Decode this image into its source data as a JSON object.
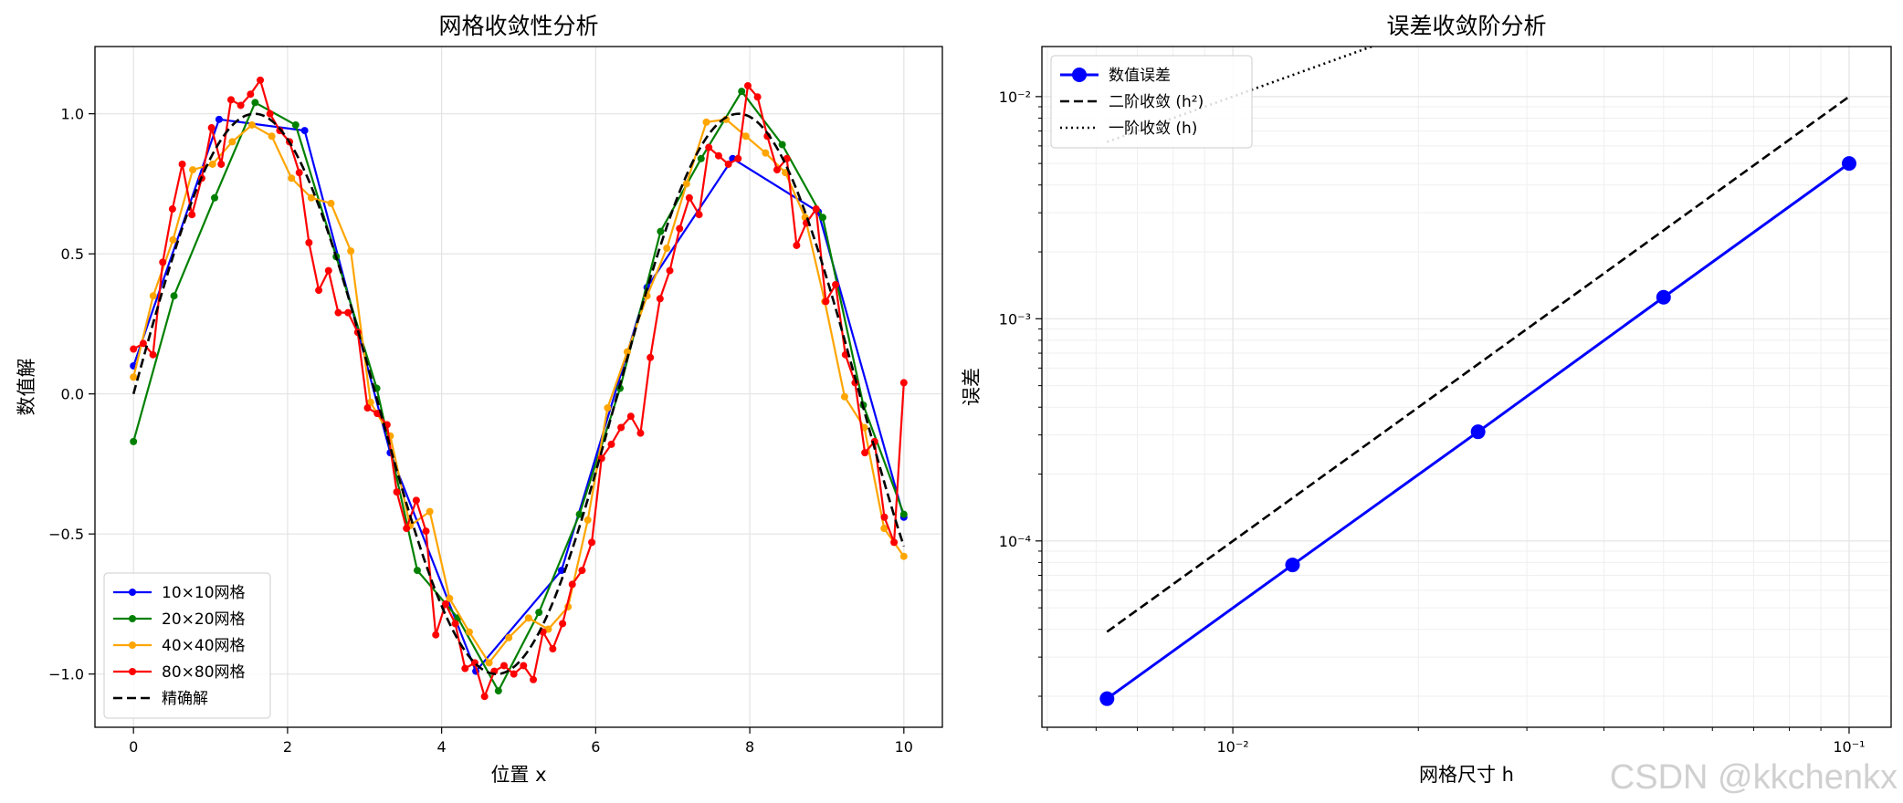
{
  "watermark": "CSDN @kkchenkx",
  "chart_data": [
    {
      "type": "line",
      "title": "网格收敛性分析",
      "xlabel": "位置 x",
      "ylabel": "数值解",
      "xlim": [
        -0.5,
        10.5
      ],
      "ylim": [
        -1.19,
        1.24
      ],
      "xticks": [
        0,
        2,
        4,
        6,
        8,
        10
      ],
      "xtick_labels": [
        "0",
        "2",
        "4",
        "6",
        "8",
        "10"
      ],
      "yticks": [
        -1.0,
        -0.5,
        0.0,
        0.5,
        1.0
      ],
      "ytick_labels": [
        "−1.0",
        "−0.5",
        "0.0",
        "0.5",
        "1.0"
      ],
      "grid": true,
      "legend_position": "lower-left",
      "series": [
        {
          "name": "10×10网格",
          "color": "#0000ff",
          "marker": "circle",
          "linestyle": "solid",
          "x": [
            0,
            1.111,
            2.222,
            3.333,
            4.444,
            5.556,
            6.667,
            7.778,
            8.889,
            10
          ],
          "y": [
            0.1,
            0.98,
            0.94,
            -0.21,
            -0.99,
            -0.63,
            0.38,
            0.84,
            0.65,
            -0.44
          ]
        },
        {
          "name": "20×20网格",
          "color": "#008000",
          "marker": "circle",
          "linestyle": "solid",
          "x": [
            0,
            0.526,
            1.053,
            1.579,
            2.105,
            2.632,
            3.158,
            3.684,
            4.211,
            4.737,
            5.263,
            5.789,
            6.316,
            6.842,
            7.368,
            7.895,
            8.421,
            8.947,
            9.474,
            10
          ],
          "y": [
            -0.17,
            0.35,
            0.7,
            1.04,
            0.96,
            0.49,
            0.02,
            -0.63,
            -0.8,
            -1.06,
            -0.78,
            -0.43,
            0.02,
            0.58,
            0.84,
            1.08,
            0.89,
            0.63,
            -0.04,
            -0.43
          ]
        },
        {
          "name": "40×40网格",
          "color": "#ffa500",
          "marker": "circle",
          "linestyle": "solid",
          "x": [
            0,
            0.256,
            0.513,
            0.769,
            1.026,
            1.282,
            1.538,
            1.795,
            2.051,
            2.308,
            2.564,
            2.821,
            3.077,
            3.333,
            3.59,
            3.846,
            4.103,
            4.359,
            4.615,
            4.872,
            5.128,
            5.385,
            5.641,
            5.897,
            6.154,
            6.41,
            6.667,
            6.923,
            7.179,
            7.436,
            7.692,
            7.949,
            8.205,
            8.462,
            8.718,
            8.974,
            9.231,
            9.487,
            9.744,
            10
          ],
          "y": [
            0.06,
            0.35,
            0.55,
            0.8,
            0.82,
            0.9,
            0.96,
            0.92,
            0.77,
            0.7,
            0.68,
            0.51,
            -0.03,
            -0.15,
            -0.47,
            -0.42,
            -0.73,
            -0.85,
            -0.96,
            -0.87,
            -0.8,
            -0.84,
            -0.76,
            -0.45,
            -0.05,
            0.15,
            0.35,
            0.52,
            0.75,
            0.97,
            0.98,
            0.92,
            0.86,
            0.79,
            0.63,
            0.33,
            -0.01,
            -0.12,
            -0.48,
            -0.58
          ]
        },
        {
          "name": "80×80网格",
          "color": "#ff0000",
          "marker": "circle",
          "linestyle": "solid",
          "x": [
            0,
            0.127,
            0.253,
            0.38,
            0.506,
            0.633,
            0.759,
            0.886,
            1.013,
            1.139,
            1.266,
            1.392,
            1.519,
            1.646,
            1.772,
            1.899,
            2.025,
            2.152,
            2.278,
            2.405,
            2.532,
            2.658,
            2.785,
            2.911,
            3.038,
            3.165,
            3.291,
            3.418,
            3.544,
            3.671,
            3.797,
            3.924,
            4.051,
            4.177,
            4.304,
            4.43,
            4.557,
            4.684,
            4.81,
            4.937,
            5.063,
            5.19,
            5.316,
            5.443,
            5.57,
            5.696,
            5.823,
            5.949,
            6.076,
            6.203,
            6.329,
            6.456,
            6.582,
            6.709,
            6.835,
            6.962,
            7.089,
            7.215,
            7.342,
            7.468,
            7.595,
            7.722,
            7.848,
            7.975,
            8.101,
            8.228,
            8.354,
            8.481,
            8.608,
            8.734,
            8.861,
            8.987,
            9.114,
            9.241,
            9.367,
            9.494,
            9.62,
            9.747,
            9.873,
            10
          ],
          "y": [
            0.16,
            0.18,
            0.14,
            0.47,
            0.66,
            0.82,
            0.64,
            0.77,
            0.95,
            0.82,
            1.05,
            1.03,
            1.07,
            1.12,
            1.0,
            0.94,
            0.9,
            0.79,
            0.54,
            0.37,
            0.44,
            0.29,
            0.29,
            0.22,
            -0.05,
            -0.07,
            -0.11,
            -0.35,
            -0.48,
            -0.38,
            -0.49,
            -0.86,
            -0.75,
            -0.82,
            -0.98,
            -0.96,
            -1.08,
            -0.99,
            -0.97,
            -1.0,
            -0.97,
            -1.02,
            -0.85,
            -0.91,
            -0.82,
            -0.68,
            -0.63,
            -0.53,
            -0.23,
            -0.18,
            -0.12,
            -0.08,
            -0.14,
            0.13,
            0.34,
            0.44,
            0.59,
            0.7,
            0.64,
            0.88,
            0.85,
            0.82,
            0.84,
            1.1,
            1.06,
            0.92,
            0.8,
            0.84,
            0.53,
            0.61,
            0.66,
            0.33,
            0.39,
            0.14,
            0.04,
            -0.21,
            -0.17,
            -0.44,
            -0.53,
            0.04
          ]
        },
        {
          "name": "精确解",
          "color": "#000000",
          "marker": "none",
          "linestyle": "dashed",
          "function": "sin",
          "x_range": [
            0,
            10
          ]
        }
      ]
    },
    {
      "type": "line",
      "title": "误差收敛阶分析",
      "xlabel": "网格尺寸 h",
      "ylabel": "误差",
      "xscale": "log",
      "yscale": "log",
      "xlim": [
        0.0049,
        0.117
      ],
      "ylim": [
        1.45e-05,
        0.0168
      ],
      "xticks": [
        0.01,
        0.1
      ],
      "xtick_labels": [
        "10⁻²",
        "10⁻¹"
      ],
      "yticks": [
        0.0001,
        0.001,
        0.01
      ],
      "ytick_labels": [
        "10⁻⁴",
        "10⁻³",
        "10⁻²"
      ],
      "grid": true,
      "legend_position": "top-left",
      "series": [
        {
          "name": "数值误差",
          "color": "#0000ff",
          "marker": "circle",
          "linestyle": "solid",
          "x": [
            0.00625,
            0.0125,
            0.025,
            0.05,
            0.1
          ],
          "y": [
            1.95e-05,
            7.8e-05,
            0.00031,
            0.00125,
            0.005
          ]
        },
        {
          "name": "二阶收敛 (h²)",
          "color": "#000000",
          "marker": "none",
          "linestyle": "dashed",
          "x": [
            0.00625,
            0.1
          ],
          "y": [
            3.9e-05,
            0.01
          ]
        },
        {
          "name": "一阶收敛 (h)",
          "color": "#000000",
          "marker": "none",
          "linestyle": "dotted",
          "x": [
            0.00625,
            0.1
          ],
          "y": [
            0.00625,
            0.1
          ]
        }
      ]
    }
  ]
}
